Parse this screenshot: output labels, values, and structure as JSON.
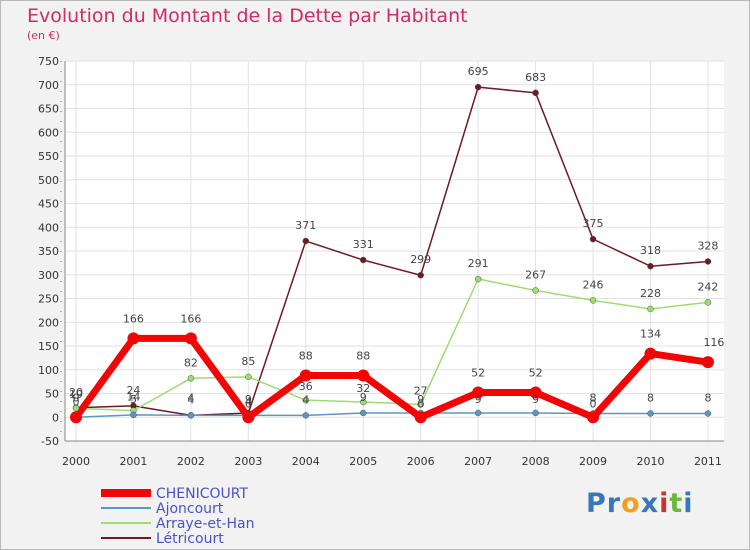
{
  "chart_data": {
    "type": "line",
    "title": "Evolution du Montant de la Dette par Habitant",
    "subtitle": "(en €)",
    "xlabel": "",
    "ylabel": "",
    "categories": [
      "2000",
      "2001",
      "2002",
      "2003",
      "2004",
      "2005",
      "2006",
      "2007",
      "2008",
      "2009",
      "2010",
      "2011"
    ],
    "ylim": [
      -50,
      750
    ],
    "yticks": [
      -50,
      0,
      50,
      100,
      150,
      200,
      250,
      300,
      350,
      400,
      450,
      500,
      550,
      600,
      650,
      700,
      750
    ],
    "ytick_labels": [
      "-50",
      "0",
      "50",
      "100",
      "150",
      "200",
      "250",
      "300",
      "350",
      "400",
      "450",
      "500",
      "550",
      "600",
      "650",
      "700",
      "750"
    ],
    "grid": true,
    "legend_position": "bottom-left",
    "series": [
      {
        "name": "CHENICOURT",
        "color": "#f20505",
        "width": 7,
        "values": [
          0,
          166,
          166,
          0,
          88,
          88,
          0,
          52,
          52,
          0,
          134,
          116
        ],
        "labels": [
          "0",
          "166",
          "166",
          "0",
          "88",
          "88",
          "0",
          "52",
          "52",
          "0",
          "134",
          "116"
        ]
      },
      {
        "name": "Ajoncourt",
        "color": "#5b97c6",
        "width": 1.5,
        "values": [
          0,
          5,
          4,
          4,
          4,
          9,
          9,
          9,
          9,
          8,
          8,
          8
        ],
        "labels": [
          "0",
          "5",
          "4",
          "4",
          "4",
          "9",
          "9",
          "9",
          "9",
          "8",
          "8",
          "8"
        ]
      },
      {
        "name": "Arraye-et-Han",
        "color": "#9bdd70",
        "width": 1.5,
        "values": [
          19,
          14,
          82,
          85,
          36,
          32,
          27,
          291,
          267,
          246,
          228,
          242
        ],
        "labels": [
          "19",
          "14",
          "82",
          "85",
          "36",
          "32",
          "27",
          "291",
          "267",
          "246",
          "228",
          "242"
        ]
      },
      {
        "name": "Létricourt",
        "color": "#6e1a22",
        "width": 1.5,
        "values": [
          20,
          24,
          4,
          9,
          371,
          331,
          299,
          695,
          683,
          375,
          318,
          328
        ],
        "labels": [
          "20",
          "24",
          "4",
          "9",
          "371",
          "331",
          "299",
          "695",
          "683",
          "375",
          "318",
          "328"
        ]
      }
    ]
  },
  "logo": {
    "text": "Proxiti",
    "letters": [
      "P",
      "r",
      "o",
      "x",
      "i",
      "t",
      "i"
    ],
    "colors": [
      "#3a77b8",
      "#3a77b8",
      "#f0a020",
      "#3a77b8",
      "#d03030",
      "#6ab83a",
      "#3a77b8"
    ]
  }
}
